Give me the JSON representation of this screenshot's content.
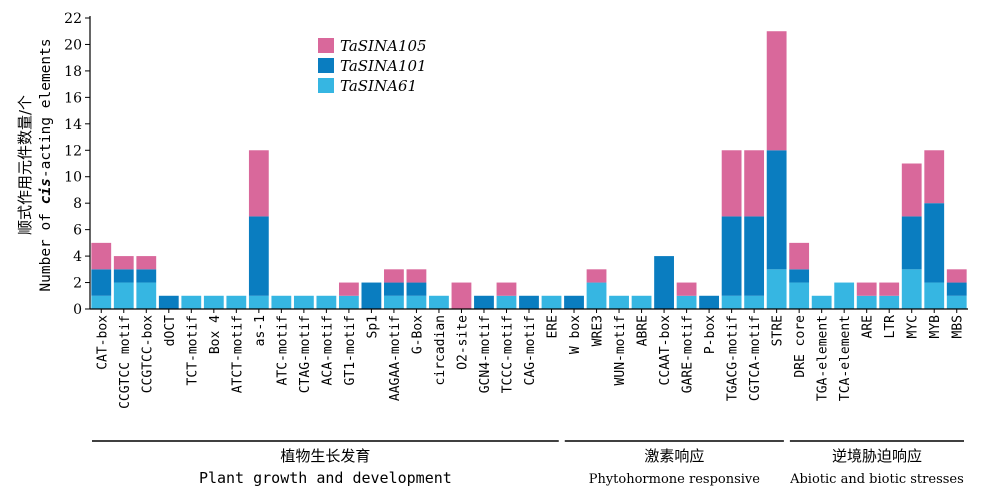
{
  "chart_data": {
    "type": "bar",
    "stacked": true,
    "ylim": [
      0,
      22
    ],
    "yticks": [
      "0",
      "2",
      "4",
      "6",
      "8",
      "10",
      "12",
      "14",
      "16",
      "18",
      "20",
      "22"
    ],
    "ylabel_cn": "顺式作用元件数量/个",
    "ylabel_en_prefix": "Number of ",
    "ylabel_en_italic": "cis",
    "ylabel_en_suffix": "-acting elements",
    "categories": [
      "CAT-box",
      "CCGTCC motif",
      "CCGTCC-box",
      "dOCT",
      "TCT-motif",
      "Box 4",
      "ATCT-motif",
      "as-1",
      "ATC-motif",
      "CTAG-motif",
      "ACA-motif",
      "GT1-motif",
      "Sp1",
      "AAGAA-motif",
      "G-Box",
      "circadian",
      "O2-site",
      "GCN4-motif",
      "TCCC-motif",
      "CAG-motif",
      "ERE",
      "W box",
      "WRE3",
      "WUN-motif",
      "ABRE",
      "CCAAT-box",
      "GARE-motif",
      "P-box",
      "TGACG-motif",
      "CGTCA-motif",
      "STRE",
      "DRE core",
      "TGA-element",
      "TCA-element",
      "ARE",
      "LTR",
      "MYC",
      "MYB",
      "MBS"
    ],
    "series": [
      {
        "name": "TaSINA61",
        "color": "#36b6e2",
        "values": [
          1,
          2,
          2,
          0,
          1,
          1,
          1,
          1,
          1,
          1,
          1,
          1,
          0,
          1,
          1,
          1,
          0,
          0,
          1,
          0,
          1,
          0,
          2,
          1,
          1,
          0,
          1,
          0,
          1,
          1,
          3,
          2,
          1,
          2,
          1,
          1,
          3,
          2,
          1
        ]
      },
      {
        "name": "TaSINA101",
        "color": "#0a7dc0",
        "values": [
          2,
          1,
          1,
          1,
          0,
          0,
          0,
          6,
          0,
          0,
          0,
          0,
          2,
          1,
          1,
          0,
          0,
          1,
          0,
          1,
          0,
          1,
          0,
          0,
          0,
          4,
          0,
          1,
          6,
          6,
          9,
          1,
          0,
          0,
          0,
          0,
          4,
          6,
          1
        ]
      },
      {
        "name": "TaSINA105",
        "color": "#d9689b",
        "values": [
          2,
          1,
          1,
          0,
          0,
          0,
          0,
          5,
          0,
          0,
          0,
          1,
          0,
          1,
          1,
          0,
          2,
          0,
          1,
          0,
          0,
          0,
          1,
          0,
          0,
          0,
          1,
          0,
          5,
          5,
          9,
          2,
          0,
          0,
          1,
          1,
          4,
          4,
          1
        ]
      }
    ],
    "legend": {
      "placement": "top-center"
    },
    "groups": [
      {
        "cn": "植物生长发育",
        "en": "Plant growth and development",
        "start": 0,
        "end": 20
      },
      {
        "cn": "激素响应",
        "en": "Phytohormone responsive",
        "start": 21,
        "end": 30
      },
      {
        "cn": "逆境胁迫响应",
        "en": "Abiotic and biotic stresses",
        "start": 31,
        "end": 38
      }
    ]
  }
}
